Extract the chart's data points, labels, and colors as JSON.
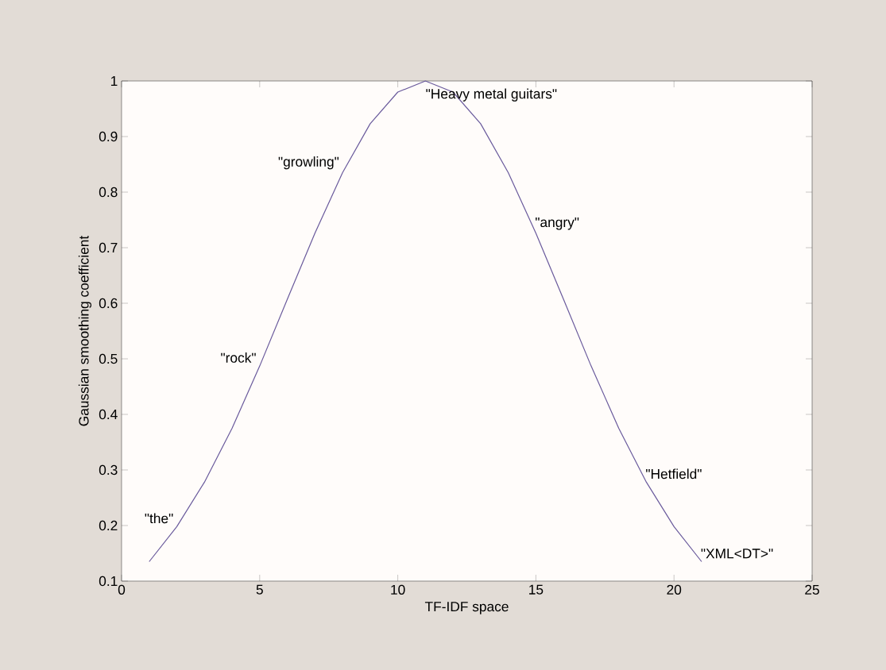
{
  "chart_data": {
    "type": "line",
    "xlabel": "TF-IDF space",
    "ylabel": "Gaussian smoothing coefficient",
    "x": [
      1,
      2,
      3,
      4,
      5,
      6,
      7,
      8,
      9,
      10,
      11,
      12,
      13,
      14,
      15,
      16,
      17,
      18,
      19,
      20,
      21
    ],
    "values": [
      0.135,
      0.198,
      0.278,
      0.375,
      0.487,
      0.607,
      0.726,
      0.835,
      0.923,
      0.98,
      1,
      0.98,
      0.923,
      0.835,
      0.726,
      0.607,
      0.487,
      0.375,
      0.278,
      0.198,
      0.135
    ],
    "color": "#6a5a9c",
    "xlim": [
      0,
      25
    ],
    "ylim": [
      0.1,
      1
    ],
    "xticks": [
      0,
      5,
      10,
      15,
      20,
      25
    ],
    "yticks": [
      0.1,
      0.2,
      0.3,
      0.4,
      0.5,
      0.6,
      0.7,
      0.8,
      0.9,
      1
    ],
    "annotations": [
      {
        "text": "\"the\"",
        "x": 2,
        "y": 0.198
      },
      {
        "text": "\"rock\"",
        "x": 5,
        "y": 0.487
      },
      {
        "text": "\"growling\"",
        "x": 8,
        "y": 0.835
      },
      {
        "text": "\"Heavy metal guitars\"",
        "x": 11,
        "y": 1
      },
      {
        "text": "\"angry\"",
        "x": 15,
        "y": 0.726
      },
      {
        "text": "\"Hetfield\"",
        "x": 19,
        "y": 0.278
      },
      {
        "text": "\"XML<DT>\"",
        "x": 21,
        "y": 0.135
      }
    ]
  }
}
